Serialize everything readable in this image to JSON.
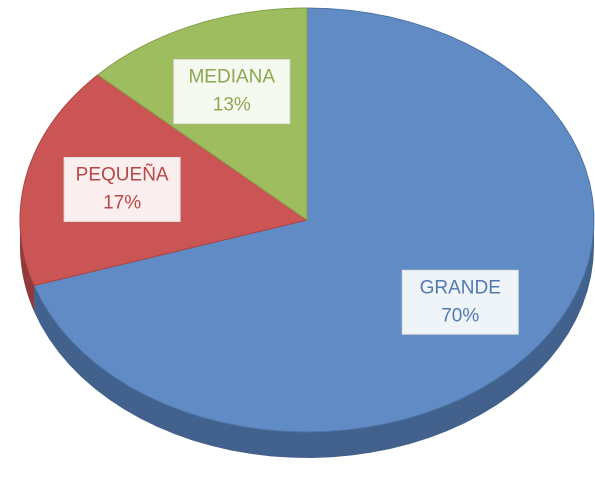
{
  "chart_data": {
    "type": "pie",
    "categories": [
      "GRANDE",
      "PEQUEÑA",
      "MEDIANA"
    ],
    "values": [
      70,
      17,
      13
    ],
    "value_labels": [
      "70%",
      "17%",
      "13%"
    ],
    "colors": [
      "#5b87c2",
      "#c9504f",
      "#9bbb59"
    ]
  }
}
